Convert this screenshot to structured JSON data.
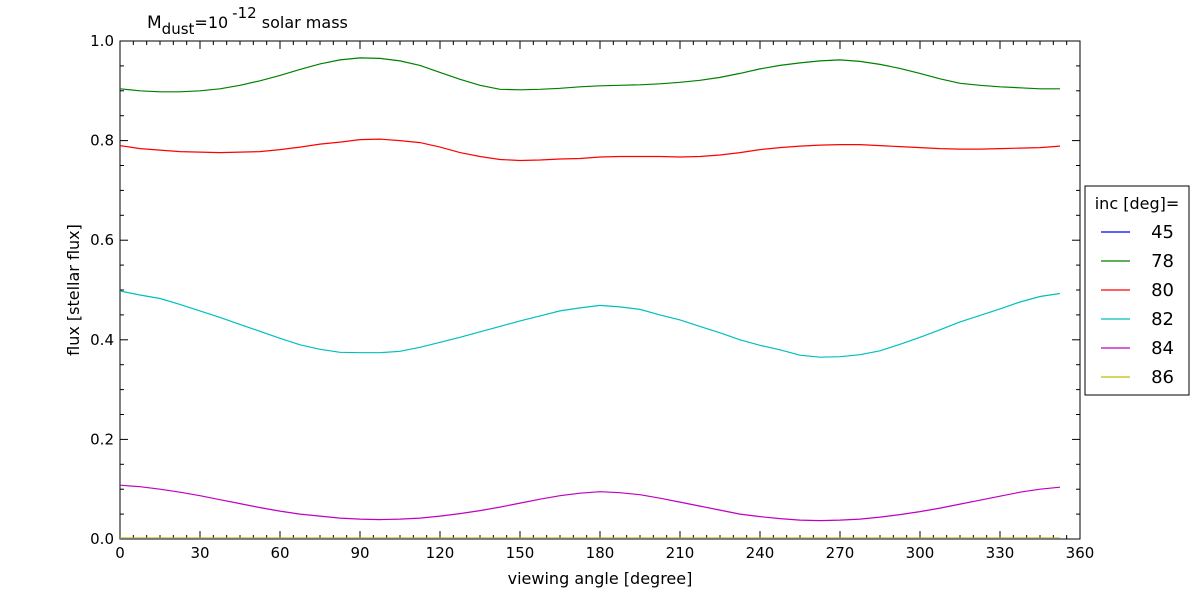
{
  "chart_data": {
    "type": "line",
    "title": {
      "symbol": "M",
      "subscript": "dust",
      "equals": "=10",
      "superscript": "-12",
      "suffix": " solar mass"
    },
    "xlabel": "viewing angle [degree]",
    "ylabel": "flux [stellar flux]",
    "xlim": [
      0,
      360
    ],
    "ylim": [
      0,
      1.0
    ],
    "xticks": [
      "0",
      "30",
      "60",
      "90",
      "120",
      "150",
      "180",
      "210",
      "240",
      "270",
      "300",
      "330",
      "360"
    ],
    "yticks": [
      "0.0",
      "0.2",
      "0.4",
      "0.6",
      "0.8",
      "1.0"
    ],
    "grid": false,
    "legend": {
      "title": "inc [deg]=",
      "placement": "outside-right"
    },
    "x": [
      0,
      7.5,
      15,
      22.5,
      30,
      37.5,
      45,
      52.5,
      60,
      67.5,
      75,
      82.5,
      90,
      97.5,
      105,
      112.5,
      120,
      127.5,
      135,
      142.5,
      150,
      157.5,
      165,
      172.5,
      180,
      187.5,
      195,
      202.5,
      210,
      217.5,
      225,
      232.5,
      240,
      247.5,
      255,
      262.5,
      270,
      277.5,
      285,
      292.5,
      300,
      307.5,
      315,
      322.5,
      330,
      337.5,
      345,
      352.5
    ],
    "series": [
      {
        "name": "45",
        "color": "#0000ff",
        "values": [
          0.001,
          0.001,
          0.001,
          0.001,
          0.001,
          0.001,
          0.001,
          0.001,
          0.001,
          0.001,
          0.001,
          0.001,
          0.001,
          0.001,
          0.001,
          0.001,
          0.001,
          0.001,
          0.001,
          0.001,
          0.001,
          0.001,
          0.001,
          0.001,
          0.001,
          0.001,
          0.001,
          0.001,
          0.001,
          0.001,
          0.001,
          0.001,
          0.001,
          0.001,
          0.001,
          0.001,
          0.001,
          0.001,
          0.001,
          0.001,
          0.001,
          0.001,
          0.001,
          0.001,
          0.001,
          0.001,
          0.001,
          0.001
        ]
      },
      {
        "name": "78",
        "color": "#008000",
        "values": [
          0.904,
          0.9,
          0.898,
          0.898,
          0.9,
          0.904,
          0.911,
          0.92,
          0.931,
          0.943,
          0.954,
          0.962,
          0.966,
          0.965,
          0.96,
          0.951,
          0.937,
          0.923,
          0.911,
          0.903,
          0.902,
          0.903,
          0.905,
          0.908,
          0.91,
          0.911,
          0.912,
          0.914,
          0.917,
          0.921,
          0.927,
          0.935,
          0.944,
          0.951,
          0.956,
          0.96,
          0.962,
          0.959,
          0.953,
          0.945,
          0.935,
          0.924,
          0.915,
          0.911,
          0.908,
          0.906,
          0.904,
          0.904
        ]
      },
      {
        "name": "80",
        "color": "#ff0000",
        "values": [
          0.79,
          0.784,
          0.781,
          0.778,
          0.777,
          0.776,
          0.777,
          0.778,
          0.782,
          0.787,
          0.793,
          0.797,
          0.802,
          0.803,
          0.8,
          0.796,
          0.787,
          0.776,
          0.768,
          0.762,
          0.76,
          0.761,
          0.763,
          0.764,
          0.767,
          0.768,
          0.768,
          0.768,
          0.767,
          0.768,
          0.771,
          0.776,
          0.782,
          0.786,
          0.789,
          0.791,
          0.792,
          0.792,
          0.79,
          0.788,
          0.786,
          0.784,
          0.783,
          0.783,
          0.784,
          0.785,
          0.786,
          0.789
        ]
      },
      {
        "name": "82",
        "color": "#00bfbf",
        "values": [
          0.498,
          0.49,
          0.483,
          0.471,
          0.458,
          0.445,
          0.431,
          0.417,
          0.403,
          0.39,
          0.381,
          0.375,
          0.374,
          0.374,
          0.377,
          0.385,
          0.395,
          0.405,
          0.416,
          0.427,
          0.438,
          0.448,
          0.458,
          0.464,
          0.469,
          0.466,
          0.461,
          0.45,
          0.44,
          0.427,
          0.414,
          0.4,
          0.389,
          0.38,
          0.369,
          0.365,
          0.366,
          0.37,
          0.378,
          0.391,
          0.405,
          0.42,
          0.436,
          0.449,
          0.462,
          0.476,
          0.487,
          0.493
        ]
      },
      {
        "name": "84",
        "color": "#bf00bf",
        "values": [
          0.108,
          0.105,
          0.1,
          0.094,
          0.087,
          0.079,
          0.071,
          0.063,
          0.056,
          0.05,
          0.046,
          0.042,
          0.04,
          0.039,
          0.04,
          0.042,
          0.046,
          0.051,
          0.057,
          0.064,
          0.072,
          0.08,
          0.087,
          0.092,
          0.095,
          0.093,
          0.089,
          0.082,
          0.074,
          0.066,
          0.058,
          0.05,
          0.045,
          0.041,
          0.038,
          0.037,
          0.038,
          0.04,
          0.044,
          0.049,
          0.055,
          0.062,
          0.07,
          0.078,
          0.086,
          0.094,
          0.1,
          0.104
        ]
      },
      {
        "name": "86",
        "color": "#bfbf00",
        "values": [
          0.002,
          0.002,
          0.002,
          0.002,
          0.002,
          0.002,
          0.002,
          0.002,
          0.002,
          0.002,
          0.002,
          0.002,
          0.002,
          0.002,
          0.002,
          0.002,
          0.002,
          0.002,
          0.002,
          0.002,
          0.002,
          0.002,
          0.002,
          0.002,
          0.002,
          0.002,
          0.002,
          0.002,
          0.002,
          0.002,
          0.002,
          0.002,
          0.002,
          0.002,
          0.002,
          0.002,
          0.002,
          0.002,
          0.002,
          0.002,
          0.002,
          0.002,
          0.002,
          0.002,
          0.002,
          0.002,
          0.002,
          0.002
        ]
      }
    ]
  }
}
